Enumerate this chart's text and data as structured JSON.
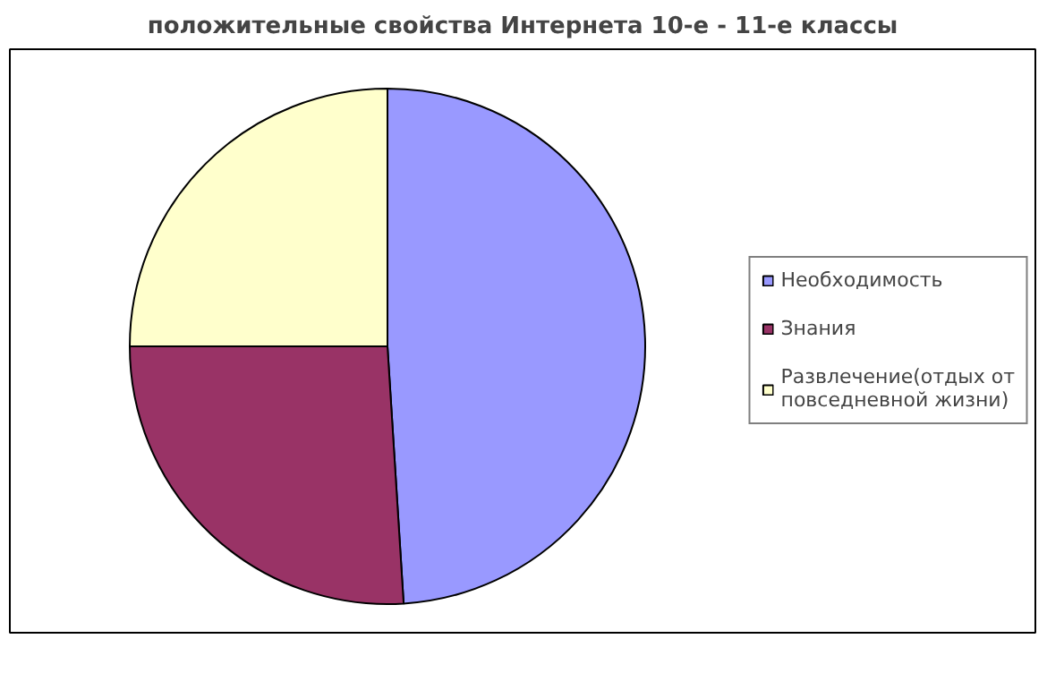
{
  "chart_data": {
    "type": "pie",
    "title": "положительные свойства Интернета 10-е - 11-е классы",
    "categories": [
      "Необходимость",
      "Знания",
      "Развлечение(отдых от повседневной жизни)"
    ],
    "values": [
      49,
      26,
      25
    ],
    "colors": [
      "#9999ff",
      "#993366",
      "#ffffcc"
    ],
    "legend": "right"
  }
}
